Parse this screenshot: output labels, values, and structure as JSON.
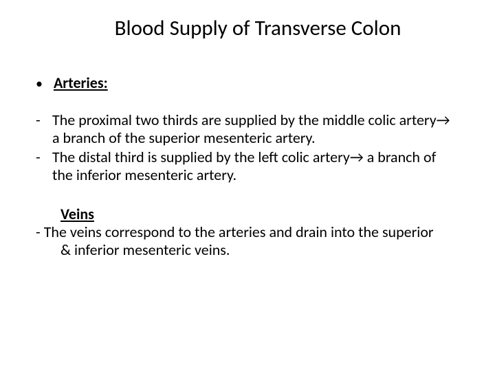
{
  "colors": {
    "background": "#ffffff",
    "text": "#000000"
  },
  "typography": {
    "title_fontsize": 31,
    "body_fontsize": 22,
    "font_family": "Calibri"
  },
  "title": "Blood Supply of Transverse Colon",
  "arteries": {
    "heading": "Arteries:",
    "items": [
      "The proximal two thirds are supplied by the middle colic artery→ a branch of the superior mesenteric artery.",
      " The distal third is supplied by the left colic artery→ a branch of the inferior mesenteric artery."
    ]
  },
  "veins": {
    "heading": "Veins",
    "body_prefix": "- The veins correspond to the arteries and drain into the superior",
    "body_cont": "& inferior mesenteric veins."
  }
}
